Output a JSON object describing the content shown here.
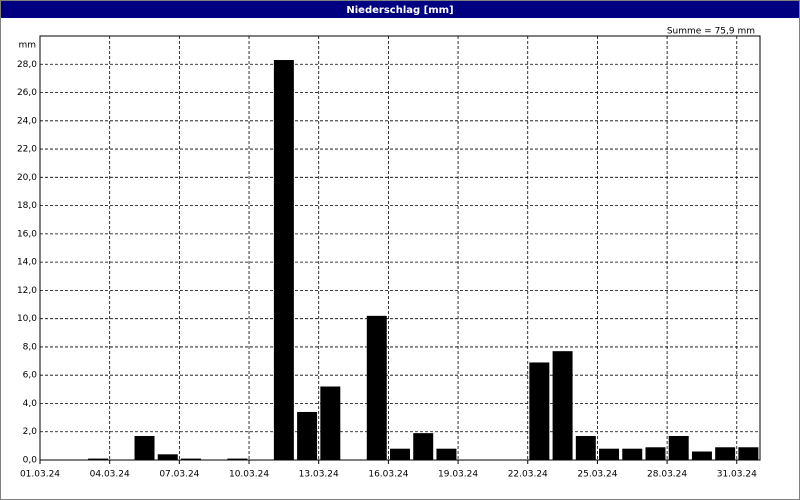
{
  "chart_data": {
    "type": "bar",
    "title": "Niederschlag [mm]",
    "y_unit": "mm",
    "annotation": "Summe = 75,9 mm",
    "categories": [
      "01.03.24",
      null,
      null,
      "04.03.24",
      null,
      null,
      "07.03.24",
      null,
      null,
      "10.03.24",
      null,
      null,
      "13.03.24",
      null,
      null,
      "16.03.24",
      null,
      null,
      "19.03.24",
      null,
      null,
      "22.03.24",
      null,
      null,
      "25.03.24",
      null,
      null,
      "28.03.24",
      null,
      null,
      "31.03.24"
    ],
    "values": [
      0,
      0,
      0.1,
      0,
      1.7,
      0.4,
      0.1,
      0,
      0.1,
      0,
      28.3,
      3.4,
      5.2,
      0,
      10.2,
      0.8,
      1.9,
      0.8,
      0,
      0,
      0,
      6.9,
      7.7,
      1.7,
      0.8,
      0.8,
      0.9,
      1.7,
      0.6,
      0.9,
      0.9
    ],
    "color": "#000000",
    "ylim": [
      0,
      30
    ],
    "yticks": [
      {
        "value": 0,
        "label": "0,0"
      },
      {
        "value": 2,
        "label": "2,0"
      },
      {
        "value": 4,
        "label": "4,0"
      },
      {
        "value": 6,
        "label": "6,0"
      },
      {
        "value": 8,
        "label": "8,0"
      },
      {
        "value": 10,
        "label": "10,0"
      },
      {
        "value": 12,
        "label": "12,0"
      },
      {
        "value": 14,
        "label": "14,0"
      },
      {
        "value": 16,
        "label": "16,0"
      },
      {
        "value": 18,
        "label": "18,0"
      },
      {
        "value": 20,
        "label": "20,0"
      },
      {
        "value": 22,
        "label": "22,0"
      },
      {
        "value": 24,
        "label": "24,0"
      },
      {
        "value": 26,
        "label": "26,0"
      },
      {
        "value": 28,
        "label": "28,0"
      }
    ],
    "grid": true
  }
}
